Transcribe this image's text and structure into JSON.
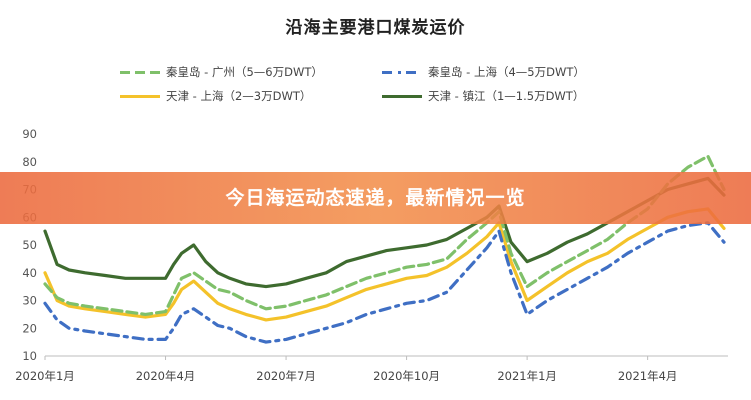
{
  "chart_data": {
    "type": "line",
    "title": "沿海主要港口煤炭运价",
    "xlabel": "",
    "ylabel": "",
    "ylim": [
      10,
      90
    ],
    "y_ticks": [
      10,
      20,
      30,
      40,
      50,
      60,
      70,
      80,
      90
    ],
    "x_ticks": [
      "2020年1月",
      "2020年4月",
      "2020年7月",
      "2020年10月",
      "2021年1月",
      "2021年4月"
    ],
    "grid": false,
    "legend_position": "top",
    "x": [
      0,
      0.3,
      0.6,
      1,
      1.5,
      2,
      2.5,
      3,
      3.2,
      3.4,
      3.7,
      4,
      4.3,
      4.6,
      5,
      5.5,
      6,
      6.5,
      7,
      7.5,
      8,
      8.5,
      9,
      9.5,
      10,
      10.5,
      11,
      11.3,
      11.6,
      12,
      12.5,
      13,
      13.5,
      14,
      14.5,
      15,
      15.5,
      16,
      16.5,
      16.9
    ],
    "series": [
      {
        "name": "秦皇岛 - 广州（5—6万DWT）",
        "color": "#7fc06a",
        "dash": "dashed",
        "values": [
          36,
          31,
          29,
          28,
          27,
          26,
          25,
          26,
          32,
          38,
          40,
          37,
          34,
          33,
          30,
          27,
          28,
          30,
          32,
          35,
          38,
          40,
          42,
          43,
          45,
          52,
          58,
          62,
          47,
          35,
          40,
          44,
          48,
          52,
          58,
          63,
          72,
          78,
          82,
          70
        ]
      },
      {
        "name": "秦皇岛 - 上海（4—5万DWT）",
        "color": "#3f6fc4",
        "dash": "dashdot",
        "values": [
          29,
          23,
          20,
          19,
          18,
          17,
          16,
          16,
          20,
          25,
          27,
          24,
          21,
          20,
          17,
          15,
          16,
          18,
          20,
          22,
          25,
          27,
          29,
          30,
          33,
          41,
          49,
          55,
          40,
          25,
          30,
          34,
          38,
          42,
          47,
          51,
          55,
          57,
          58,
          51
        ]
      },
      {
        "name": "天津 - 上海（2—3万DWT）",
        "color": "#f4c22a",
        "dash": "solid",
        "values": [
          40,
          30,
          28,
          27,
          26,
          25,
          24,
          25,
          29,
          34,
          37,
          33,
          29,
          27,
          25,
          23,
          24,
          26,
          28,
          31,
          34,
          36,
          38,
          39,
          42,
          47,
          53,
          58,
          44,
          30,
          35,
          40,
          44,
          47,
          52,
          56,
          60,
          62,
          63,
          56
        ]
      },
      {
        "name": "天津 - 镇江（1—1.5万DWT）",
        "color": "#3e6b2f",
        "dash": "solid",
        "values": [
          55,
          43,
          41,
          40,
          39,
          38,
          38,
          38,
          43,
          47,
          50,
          44,
          40,
          38,
          36,
          35,
          36,
          38,
          40,
          44,
          46,
          48,
          49,
          50,
          52,
          56,
          60,
          64,
          51,
          44,
          47,
          51,
          54,
          58,
          62,
          66,
          70,
          72,
          74,
          68
        ]
      }
    ]
  },
  "banner_text": "今日海运动态速递，最新情况一览"
}
